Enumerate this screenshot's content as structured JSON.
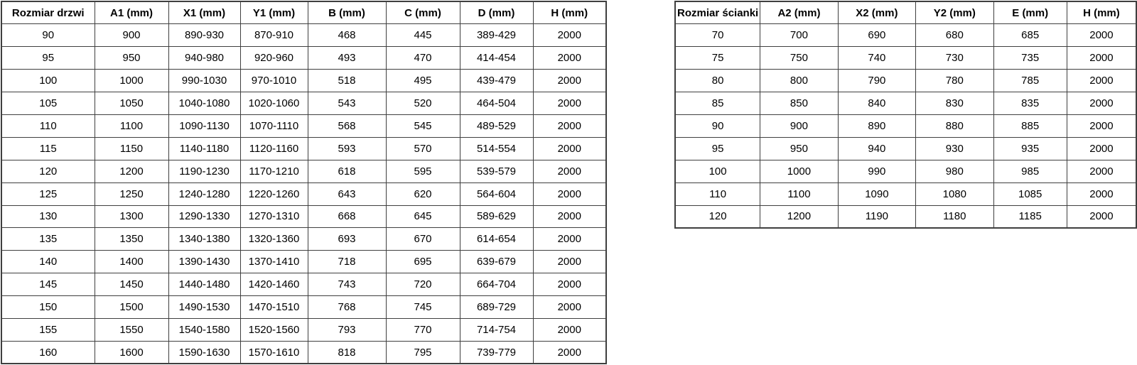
{
  "colors": {
    "border": "#3f3f3f",
    "text": "#000000",
    "background": "#ffffff"
  },
  "chart_data": [
    {
      "type": "table",
      "title": "Rozmiar drzwi",
      "columns": [
        "Rozmiar drzwi",
        "A1 (mm)",
        "X1 (mm)",
        "Y1 (mm)",
        "B (mm)",
        "C (mm)",
        "D (mm)",
        "H (mm)"
      ],
      "rows": [
        [
          "90",
          "900",
          "890-930",
          "870-910",
          "468",
          "445",
          "389-429",
          "2000"
        ],
        [
          "95",
          "950",
          "940-980",
          "920-960",
          "493",
          "470",
          "414-454",
          "2000"
        ],
        [
          "100",
          "1000",
          "990-1030",
          "970-1010",
          "518",
          "495",
          "439-479",
          "2000"
        ],
        [
          "105",
          "1050",
          "1040-1080",
          "1020-1060",
          "543",
          "520",
          "464-504",
          "2000"
        ],
        [
          "110",
          "1100",
          "1090-1130",
          "1070-1110",
          "568",
          "545",
          "489-529",
          "2000"
        ],
        [
          "115",
          "1150",
          "1140-1180",
          "1120-1160",
          "593",
          "570",
          "514-554",
          "2000"
        ],
        [
          "120",
          "1200",
          "1190-1230",
          "1170-1210",
          "618",
          "595",
          "539-579",
          "2000"
        ],
        [
          "125",
          "1250",
          "1240-1280",
          "1220-1260",
          "643",
          "620",
          "564-604",
          "2000"
        ],
        [
          "130",
          "1300",
          "1290-1330",
          "1270-1310",
          "668",
          "645",
          "589-629",
          "2000"
        ],
        [
          "135",
          "1350",
          "1340-1380",
          "1320-1360",
          "693",
          "670",
          "614-654",
          "2000"
        ],
        [
          "140",
          "1400",
          "1390-1430",
          "1370-1410",
          "718",
          "695",
          "639-679",
          "2000"
        ],
        [
          "145",
          "1450",
          "1440-1480",
          "1420-1460",
          "743",
          "720",
          "664-704",
          "2000"
        ],
        [
          "150",
          "1500",
          "1490-1530",
          "1470-1510",
          "768",
          "745",
          "689-729",
          "2000"
        ],
        [
          "155",
          "1550",
          "1540-1580",
          "1520-1560",
          "793",
          "770",
          "714-754",
          "2000"
        ],
        [
          "160",
          "1600",
          "1590-1630",
          "1570-1610",
          "818",
          "795",
          "739-779",
          "2000"
        ]
      ]
    },
    {
      "type": "table",
      "title": "Rozmiar ścianki",
      "columns": [
        "Rozmiar ścianki",
        "A2 (mm)",
        "X2 (mm)",
        "Y2 (mm)",
        "E (mm)",
        "H (mm)"
      ],
      "rows": [
        [
          "70",
          "700",
          "690",
          "680",
          "685",
          "2000"
        ],
        [
          "75",
          "750",
          "740",
          "730",
          "735",
          "2000"
        ],
        [
          "80",
          "800",
          "790",
          "780",
          "785",
          "2000"
        ],
        [
          "85",
          "850",
          "840",
          "830",
          "835",
          "2000"
        ],
        [
          "90",
          "900",
          "890",
          "880",
          "885",
          "2000"
        ],
        [
          "95",
          "950",
          "940",
          "930",
          "935",
          "2000"
        ],
        [
          "100",
          "1000",
          "990",
          "980",
          "985",
          "2000"
        ],
        [
          "110",
          "1100",
          "1090",
          "1080",
          "1085",
          "2000"
        ],
        [
          "120",
          "1200",
          "1190",
          "1180",
          "1185",
          "2000"
        ]
      ]
    }
  ]
}
